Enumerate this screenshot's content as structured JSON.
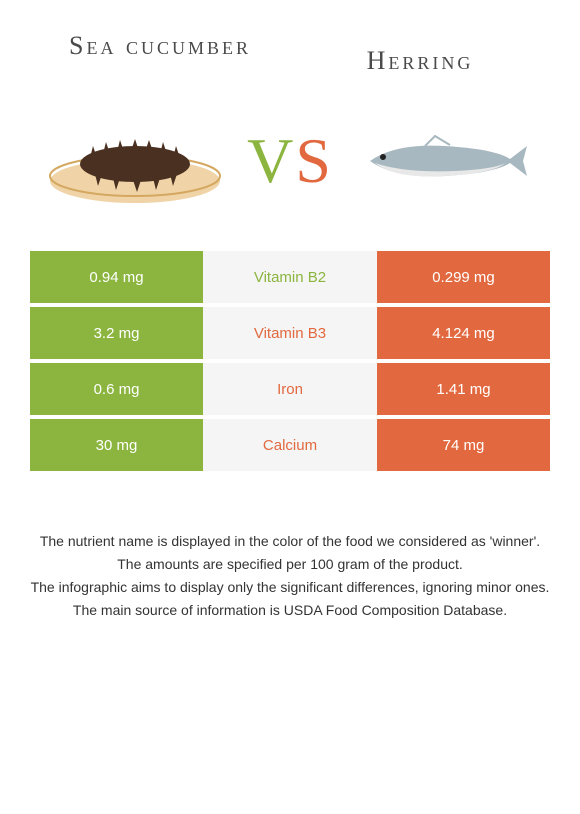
{
  "foods": {
    "left": {
      "name": "Sea cucumber",
      "color": "#8bb53f"
    },
    "right": {
      "name": "Herring",
      "color": "#e2693f"
    }
  },
  "vs": {
    "v": "V",
    "s": "S"
  },
  "table": {
    "background_mid": "#f5f5f5",
    "rows": [
      {
        "nutrient": "Vitamin B2",
        "left": "0.94 mg",
        "right": "0.299 mg",
        "winner": "left"
      },
      {
        "nutrient": "Vitamin B3",
        "left": "3.2 mg",
        "right": "4.124 mg",
        "winner": "right"
      },
      {
        "nutrient": "Iron",
        "left": "0.6 mg",
        "right": "1.41 mg",
        "winner": "right"
      },
      {
        "nutrient": "Calcium",
        "left": "30 mg",
        "right": "74 mg",
        "winner": "right"
      }
    ]
  },
  "footer": {
    "line1": "The nutrient name is displayed in the color of the food we considered as 'winner'.",
    "line2": "The amounts are specified per 100 gram of the product.",
    "line3": "The infographic aims to display only the significant differences, ignoring minor ones.",
    "line4": "The main source of information is USDA Food Composition Database."
  },
  "svg": {
    "plate_fill": "#f0d4a8",
    "plate_edge": "#d4a860",
    "cucumber_fill": "#4a3020",
    "fish_body": "#a8b8c0",
    "fish_belly": "#e8e8e8",
    "fish_eye": "#222"
  }
}
